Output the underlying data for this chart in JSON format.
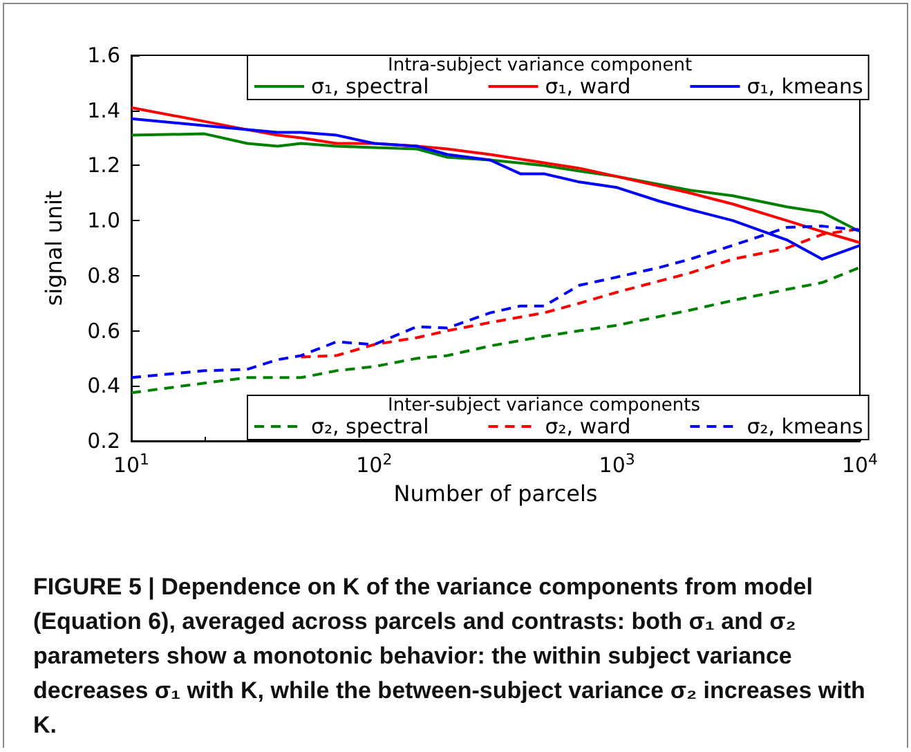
{
  "chart_data": {
    "type": "line",
    "xlabel": "Number of parcels",
    "ylabel": "signal unit",
    "log": "x",
    "xlim": [
      10,
      10000
    ],
    "xticks": [
      {
        "value": 10,
        "label": "10$^{1}$"
      },
      {
        "value": 100,
        "label": "10$^{2}$"
      },
      {
        "value": 1000,
        "label": "10$^{3}$"
      },
      {
        "value": 10000,
        "label": "10$^{4}$"
      }
    ],
    "ylim": [
      0.2,
      1.6
    ],
    "yticks": [
      0.2,
      0.4,
      0.6,
      0.8,
      {
        "value": 1,
        "label": "1.0"
      },
      1.2,
      1.4,
      1.6
    ],
    "grid": false,
    "legend": "right",
    "marker": "none",
    "annotations": [
      "Intra-subject variance component",
      "Inter-subject variance components",
      "FIGURE 5 | Dependence on K of the variance components from model (Equation 6), averaged across parcels and contrasts: both σ₁ and σ₂ parameters show a monotonic behavior: the within subject variance decreases σ₁ with K, while the between-subject variance σ₂ increases with K."
    ],
    "series": [
      {
        "name": "σ₁, spectral",
        "color": "#008000",
        "line_style": "solid",
        "x": [
          10,
          20,
          30,
          40,
          50,
          70,
          100,
          150,
          200,
          300,
          500,
          700,
          1000,
          2000,
          3000,
          5000,
          7000,
          10000
        ],
        "values": [
          1.31,
          1.315,
          1.28,
          1.27,
          1.28,
          1.27,
          1.265,
          1.26,
          1.23,
          1.22,
          1.2,
          1.18,
          1.16,
          1.11,
          1.09,
          1.05,
          1.03,
          0.96
        ]
      },
      {
        "name": "σ₁, ward",
        "color": "#ff0000",
        "line_style": "solid",
        "x": [
          10,
          20,
          30,
          40,
          50,
          70,
          100,
          150,
          200,
          300,
          500,
          700,
          1000,
          2000,
          3000,
          5000,
          7000,
          10000
        ],
        "values": [
          1.41,
          1.36,
          1.33,
          1.31,
          1.3,
          1.28,
          1.28,
          1.27,
          1.26,
          1.24,
          1.21,
          1.19,
          1.16,
          1.1,
          1.06,
          1.0,
          0.96,
          0.92
        ]
      },
      {
        "name": "σ₁, kmeans",
        "color": "#0000ff",
        "line_style": "solid",
        "x": [
          10,
          20,
          30,
          40,
          50,
          70,
          100,
          150,
          200,
          300,
          400,
          500,
          700,
          1000,
          1500,
          2000,
          3000,
          5000,
          7000,
          10000
        ],
        "values": [
          1.37,
          1.345,
          1.33,
          1.32,
          1.32,
          1.31,
          1.28,
          1.27,
          1.24,
          1.22,
          1.17,
          1.17,
          1.14,
          1.12,
          1.07,
          1.04,
          1.0,
          0.93,
          0.86,
          0.91
        ]
      },
      {
        "name": "σ₂, spectral",
        "color": "#008000",
        "line_style": "dashed",
        "x": [
          10,
          20,
          30,
          40,
          50,
          70,
          100,
          150,
          200,
          300,
          500,
          700,
          1000,
          2000,
          3000,
          5000,
          7000,
          10000
        ],
        "values": [
          0.375,
          0.41,
          0.43,
          0.43,
          0.43,
          0.455,
          0.47,
          0.5,
          0.51,
          0.545,
          0.58,
          0.6,
          0.62,
          0.675,
          0.71,
          0.75,
          0.775,
          0.83
        ]
      },
      {
        "name": "σ₂, ward",
        "color": "#ff0000",
        "line_style": "dashed",
        "x": [
          50,
          70,
          100,
          150,
          200,
          300,
          500,
          700,
          1000,
          2000,
          3000,
          5000,
          7000,
          10000
        ],
        "values": [
          0.505,
          0.51,
          0.55,
          0.575,
          0.6,
          0.63,
          0.665,
          0.7,
          0.74,
          0.81,
          0.86,
          0.9,
          0.95,
          0.97
        ]
      },
      {
        "name": "σ₂, kmeans",
        "color": "#0000ff",
        "line_style": "dashed",
        "x": [
          10,
          20,
          30,
          40,
          50,
          70,
          100,
          150,
          200,
          300,
          400,
          500,
          700,
          1000,
          1500,
          2000,
          3000,
          5000,
          7000,
          10000
        ],
        "values": [
          0.43,
          0.455,
          0.46,
          0.495,
          0.51,
          0.56,
          0.55,
          0.615,
          0.61,
          0.665,
          0.69,
          0.69,
          0.765,
          0.795,
          0.83,
          0.86,
          0.91,
          0.975,
          0.98,
          0.965
        ]
      }
    ]
  }
}
